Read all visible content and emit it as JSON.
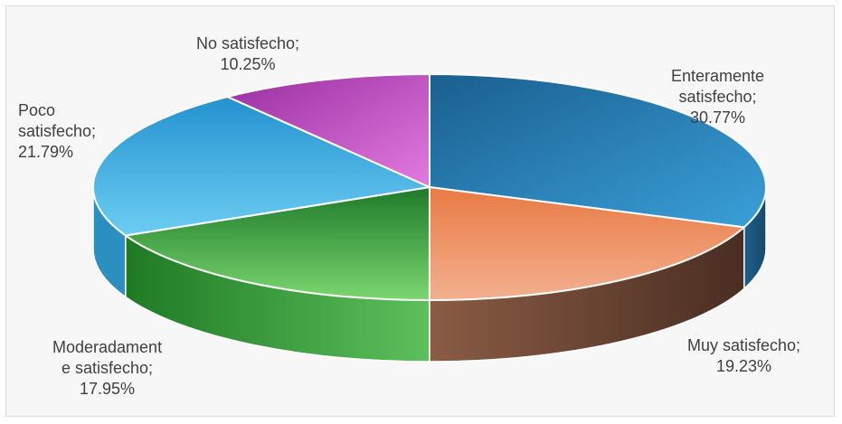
{
  "chart_data": {
    "type": "pie",
    "title": "",
    "slices": [
      {
        "name": "Enteramente satisfecho",
        "value": 30.77,
        "label_lines": [
          "Enteramente",
          "satisfecho;",
          "30.77%"
        ],
        "color": "#2e80b8",
        "side_color": "#1f5f8a"
      },
      {
        "name": "Muy satisfecho",
        "value": 19.23,
        "label_lines": [
          "Muy satisfecho;",
          "19.23%"
        ],
        "color": "#ec8a5c",
        "side_color": "#6e4a3a"
      },
      {
        "name": "Moderadamente satisfecho",
        "value": 17.95,
        "label_lines": [
          "Moderadament",
          "e satisfecho;",
          "17.95%"
        ],
        "color": "#4fb64f",
        "side_color": "#2f8a2f"
      },
      {
        "name": "Poco satisfecho",
        "value": 21.79,
        "label_lines": [
          "Poco",
          "satisfecho;",
          "21.79%"
        ],
        "color": "#46b4e4",
        "side_color": "#2b8fc0"
      },
      {
        "name": "No satisfecho",
        "value": 10.25,
        "label_lines": [
          "No satisfecho;",
          "10.25%"
        ],
        "color": "#c455c8",
        "side_color": "#9a3a9e"
      }
    ],
    "legend": "none"
  }
}
